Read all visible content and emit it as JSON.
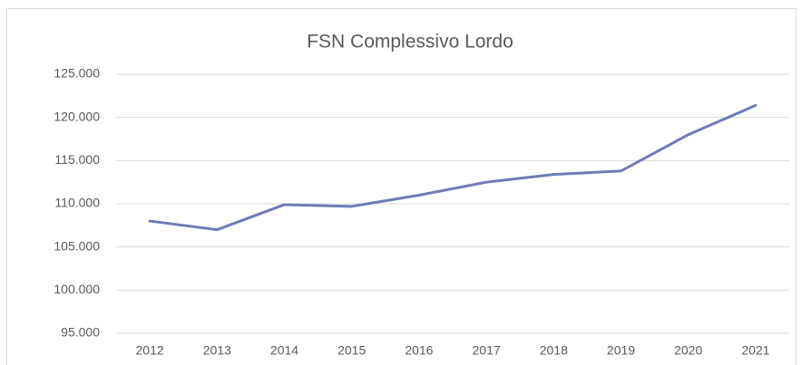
{
  "chart_data": {
    "type": "line",
    "title": "FSN Complessivo Lordo",
    "categories": [
      "2012",
      "2013",
      "2014",
      "2015",
      "2016",
      "2017",
      "2018",
      "2019",
      "2020",
      "2021"
    ],
    "series": [
      {
        "name": "FSN Complessivo Lordo",
        "color": "#6f7bb7",
        "values": [
          108000,
          107000,
          109900,
          109700,
          111000,
          112500,
          113400,
          113800,
          118000,
          121400
        ]
      }
    ],
    "ylim": [
      95000,
      125000
    ],
    "yticks": [
      {
        "value": 95000,
        "label": "95.000"
      },
      {
        "value": 100000,
        "label": "100.000"
      },
      {
        "value": 105000,
        "label": "105.000"
      },
      {
        "value": 110000,
        "label": "110.000"
      },
      {
        "value": 115000,
        "label": "115.000"
      },
      {
        "value": 120000,
        "label": "120.000"
      },
      {
        "value": 125000,
        "label": "125.000"
      }
    ],
    "grid": true
  }
}
